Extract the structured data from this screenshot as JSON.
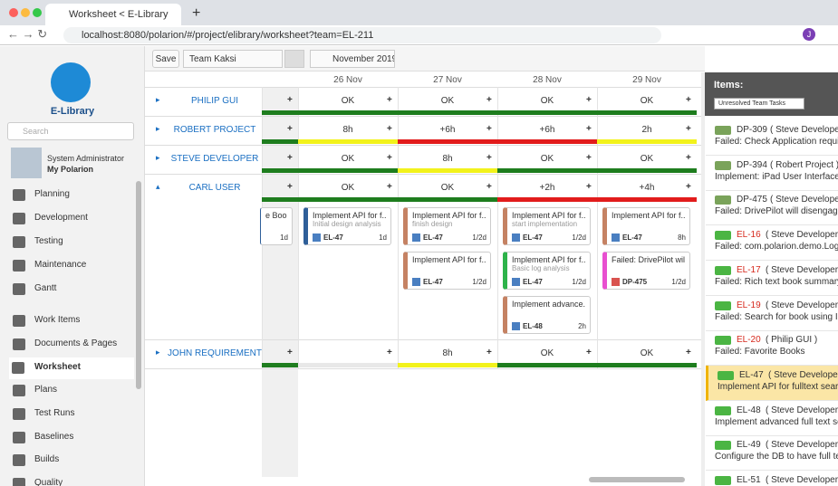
{
  "browser": {
    "tab_title": "Worksheet < E-Library",
    "url": "localhost:8080/polarion/#/project/elibrary/worksheet?team=EL-211",
    "profile_initial": "J"
  },
  "sidebar": {
    "project": "E-Library",
    "search_placeholder": "Search",
    "user_role": "System Administrator",
    "user_link": "My Polarion",
    "nav": [
      "Planning",
      "Development",
      "Testing",
      "Maintenance",
      "Gantt",
      "Work Items",
      "Documents & Pages",
      "Worksheet",
      "Plans",
      "Test Runs",
      "Baselines",
      "Builds",
      "Quality"
    ],
    "selected": "Worksheet"
  },
  "toolbar": {
    "save": "Save",
    "team": "Team Kaksi",
    "month": "November 2019"
  },
  "worksheet": {
    "add_label": "+",
    "dates": [
      "26 Nov",
      "27 Nov",
      "28 Nov",
      "29 Nov"
    ],
    "rows": [
      {
        "name": "PHILIP GUI",
        "cells": [
          {
            "text": "",
            "bar": "#1e7d1e"
          },
          {
            "text": "OK",
            "bar": "#1e7d1e"
          },
          {
            "text": "OK",
            "bar": "#1e7d1e"
          },
          {
            "text": "OK",
            "bar": "#1e7d1e"
          },
          {
            "text": "OK",
            "bar": "#1e7d1e"
          }
        ]
      },
      {
        "name": "ROBERT PROJECT",
        "cells": [
          {
            "text": "",
            "bar": "#1e7d1e"
          },
          {
            "text": "8h",
            "bar": "#f2f21c"
          },
          {
            "text": "+6h",
            "bar": "#e21c1c"
          },
          {
            "text": "+6h",
            "bar": "#e21c1c"
          },
          {
            "text": "2h",
            "bar": "#f2f21c"
          }
        ]
      },
      {
        "name": "STEVE DEVELOPER",
        "cells": [
          {
            "text": "",
            "bar": "#1e7d1e"
          },
          {
            "text": "OK",
            "bar": "#1e7d1e"
          },
          {
            "text": "8h",
            "bar": "#f2f21c"
          },
          {
            "text": "OK",
            "bar": "#1e7d1e"
          },
          {
            "text": "OK",
            "bar": "#1e7d1e"
          }
        ]
      },
      {
        "name": "CARL USER",
        "expanded": true,
        "cells": [
          {
            "text": "",
            "bar": "#1e7d1e",
            "cards": [
              {
                "title": "e Books",
                "effort": "1d",
                "color": "#2f5f99"
              }
            ]
          },
          {
            "text": "OK",
            "bar": "#1e7d1e",
            "cards": [
              {
                "title": "Implement API for f...",
                "subtitle": "Initial design analysis",
                "id": "EL-47",
                "effort": "1d",
                "color": "#2f5f99"
              }
            ]
          },
          {
            "text": "OK",
            "bar": "#1e7d1e",
            "cards": [
              {
                "title": "Implement API for f...",
                "subtitle": "finish design",
                "id": "EL-47",
                "effort": "1/2d",
                "color": "#c58263"
              },
              {
                "title": "Implement API for f...",
                "id": "EL-47",
                "effort": "1/2d",
                "color": "#c58263"
              }
            ]
          },
          {
            "text": "+2h",
            "bar": "#e21c1c",
            "cards": [
              {
                "title": "Implement API for f...",
                "subtitle": "start implementation",
                "id": "EL-47",
                "effort": "1/2d",
                "color": "#c58263"
              },
              {
                "title": "Implement API for f...",
                "subtitle": "Basic log analysis",
                "id": "EL-47",
                "effort": "1/2d",
                "color": "#2db34a"
              },
              {
                "title": "Implement advance...",
                "id": "EL-48",
                "effort": "2h",
                "color": "#c58263"
              }
            ]
          },
          {
            "text": "+4h",
            "bar": "#e21c1c",
            "cards": [
              {
                "title": "Implement API for f...",
                "id": "EL-47",
                "effort": "8h",
                "color": "#c58263"
              },
              {
                "title": "Failed: DrivePilot wil...",
                "id": "DP-475",
                "effort": "1/2d",
                "color": "#e84fd0"
              }
            ]
          }
        ]
      },
      {
        "name": "JOHN REQUIREMENT",
        "cells": [
          {
            "text": "",
            "bar": "#1e7d1e"
          },
          {
            "text": "",
            "bar": "#e8e8e8"
          },
          {
            "text": "8h",
            "bar": "#f2f21c"
          },
          {
            "text": "OK",
            "bar": "#1e7d1e"
          },
          {
            "text": "OK",
            "bar": "#1e7d1e"
          }
        ]
      }
    ]
  },
  "items": {
    "title": "Items:",
    "filter": "Unresolved Team Tasks",
    "list": [
      {
        "id": "DP-309",
        "person": "( Steve Developer",
        "text": "Failed: Check Application requir",
        "overdue": false,
        "selected": false
      },
      {
        "id": "DP-394",
        "person": "( Robert Project )",
        "text": "Implement: iPad User Interface a",
        "overdue": false,
        "selected": false
      },
      {
        "id": "DP-475",
        "person": "( Steve Developer",
        "text": "Failed: DrivePilot will disengage",
        "overdue": false,
        "selected": false
      },
      {
        "id": "EL-16",
        "person": "( Steve Developer )",
        "text": "Failed: com.polarion.demo.Login",
        "overdue": true,
        "selected": false
      },
      {
        "id": "EL-17",
        "person": "( Steve Developer )",
        "text": "Failed: Rich text book summary",
        "overdue": true,
        "selected": false
      },
      {
        "id": "EL-19",
        "person": "( Steve Developer )",
        "text": "Failed: Search for book using ISB",
        "overdue": true,
        "selected": false
      },
      {
        "id": "EL-20",
        "person": "( Philip GUI )",
        "text": "Failed: Favorite Books",
        "overdue": true,
        "selected": false
      },
      {
        "id": "EL-47",
        "person": "( Steve Developer )",
        "text": "Implement API for fulltext searc",
        "overdue": false,
        "selected": true
      },
      {
        "id": "EL-48",
        "person": "( Steve Developer )",
        "text": "Implement advanced full text se",
        "overdue": false,
        "selected": false
      },
      {
        "id": "EL-49",
        "person": "( Steve Developer )",
        "text": "Configure the DB to have full tex",
        "overdue": false,
        "selected": false
      },
      {
        "id": "EL-51",
        "person": "( Steve Developer",
        "text": "",
        "overdue": false,
        "selected": false
      }
    ]
  }
}
